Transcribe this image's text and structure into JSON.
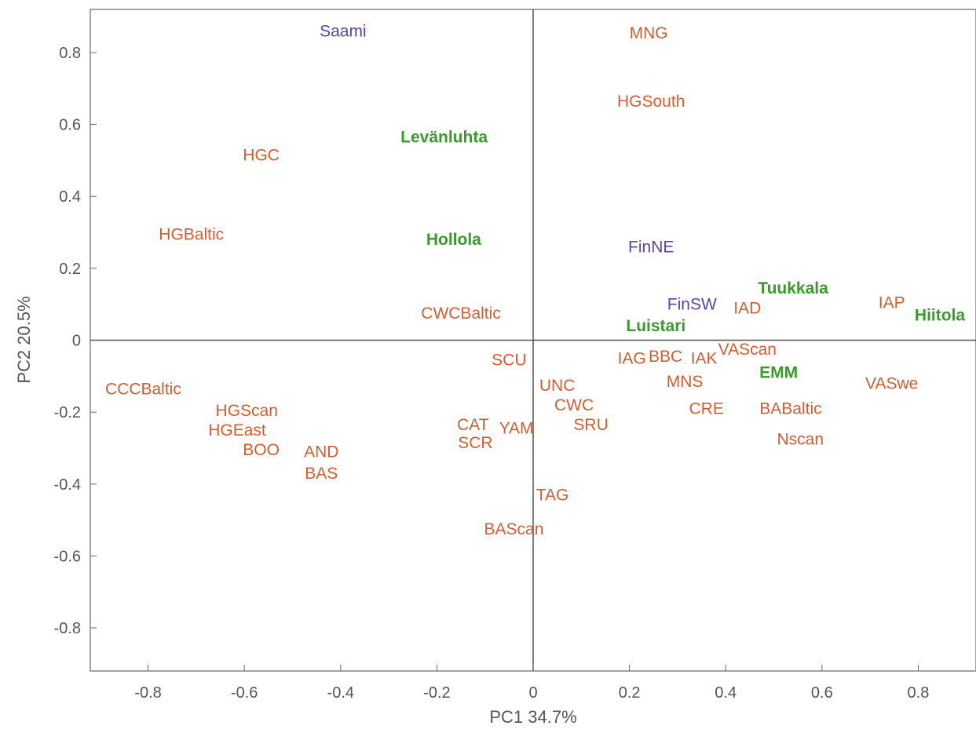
{
  "chart_data": {
    "type": "scatter",
    "xlabel": "PC1 34.7%",
    "ylabel": "PC2 20.5%",
    "xlim": [
      -0.92,
      0.92
    ],
    "ylim": [
      -0.92,
      0.92
    ],
    "x_ticks": [
      -0.8,
      -0.6,
      -0.4,
      -0.2,
      0,
      0.2,
      0.4,
      0.6,
      0.8
    ],
    "y_ticks": [
      0.8,
      0.6,
      0.4,
      0.2,
      0,
      -0.2,
      -0.4,
      -0.6,
      -0.8
    ],
    "x_tick_labels": [
      "-0.8",
      "-0.6",
      "-0.4",
      "-0.2",
      "0",
      "0.2",
      "0.4",
      "0.6",
      "0.8"
    ],
    "y_tick_labels": [
      "0.8",
      "0.6",
      "0.4",
      "0.2",
      "0",
      "-0.2",
      "-0.4",
      "-0.6",
      "-0.8"
    ],
    "zero_lines": true,
    "grid": false,
    "colors": {
      "orange": "#cf5f32",
      "purple": "#5b44a8",
      "green": "#3a9a2c",
      "axis": "#555555",
      "frame": "#666666"
    },
    "points": [
      {
        "label": "Saami",
        "x": -0.395,
        "y": 0.86,
        "color": "purple"
      },
      {
        "label": "MNG",
        "x": 0.24,
        "y": 0.855,
        "color": "orange"
      },
      {
        "label": "HGSouth",
        "x": 0.245,
        "y": 0.665,
        "color": "orange"
      },
      {
        "label": "Levänluhta",
        "x": -0.185,
        "y": 0.565,
        "color": "green",
        "bold": true
      },
      {
        "label": "HGC",
        "x": -0.565,
        "y": 0.515,
        "color": "orange"
      },
      {
        "label": "HGBaltic",
        "x": -0.71,
        "y": 0.295,
        "color": "orange"
      },
      {
        "label": "Hollola",
        "x": -0.165,
        "y": 0.28,
        "color": "green",
        "bold": true
      },
      {
        "label": "FinNE",
        "x": 0.245,
        "y": 0.26,
        "color": "purple"
      },
      {
        "label": "Tuukkala",
        "x": 0.54,
        "y": 0.145,
        "color": "green",
        "bold": true
      },
      {
        "label": "FinSW",
        "x": 0.33,
        "y": 0.1,
        "color": "purple"
      },
      {
        "label": "IAD",
        "x": 0.445,
        "y": 0.09,
        "color": "orange"
      },
      {
        "label": "IAP",
        "x": 0.745,
        "y": 0.105,
        "color": "orange"
      },
      {
        "label": "Hiitola",
        "x": 0.845,
        "y": 0.07,
        "color": "green",
        "bold": true
      },
      {
        "label": "CWCBaltic",
        "x": -0.15,
        "y": 0.075,
        "color": "orange"
      },
      {
        "label": "Luistari",
        "x": 0.255,
        "y": 0.04,
        "color": "green",
        "bold": true
      },
      {
        "label": "VAScan",
        "x": 0.445,
        "y": -0.025,
        "color": "orange"
      },
      {
        "label": "IAG",
        "x": 0.205,
        "y": -0.05,
        "color": "orange"
      },
      {
        "label": "BBC",
        "x": 0.275,
        "y": -0.045,
        "color": "orange"
      },
      {
        "label": "IAK",
        "x": 0.355,
        "y": -0.05,
        "color": "orange"
      },
      {
        "label": "SCU",
        "x": -0.05,
        "y": -0.055,
        "color": "orange"
      },
      {
        "label": "EMM",
        "x": 0.51,
        "y": -0.09,
        "color": "green",
        "bold": true
      },
      {
        "label": "MNS",
        "x": 0.315,
        "y": -0.115,
        "color": "orange"
      },
      {
        "label": "VASwe",
        "x": 0.745,
        "y": -0.12,
        "color": "orange"
      },
      {
        "label": "CCCBaltic",
        "x": -0.81,
        "y": -0.135,
        "color": "orange"
      },
      {
        "label": "UNC",
        "x": 0.05,
        "y": -0.125,
        "color": "orange"
      },
      {
        "label": "HGScan",
        "x": -0.595,
        "y": -0.195,
        "color": "orange"
      },
      {
        "label": "CWC",
        "x": 0.085,
        "y": -0.18,
        "color": "orange"
      },
      {
        "label": "CRE",
        "x": 0.36,
        "y": -0.19,
        "color": "orange"
      },
      {
        "label": "BABaltic",
        "x": 0.535,
        "y": -0.19,
        "color": "orange"
      },
      {
        "label": "CAT",
        "x": -0.125,
        "y": -0.235,
        "color": "orange"
      },
      {
        "label": "HGEast",
        "x": -0.615,
        "y": -0.25,
        "color": "orange"
      },
      {
        "label": "SRU",
        "x": 0.12,
        "y": -0.235,
        "color": "orange"
      },
      {
        "label": "YAM",
        "x": -0.035,
        "y": -0.245,
        "color": "orange"
      },
      {
        "label": "SCR",
        "x": -0.12,
        "y": -0.285,
        "color": "orange"
      },
      {
        "label": "Nscan",
        "x": 0.555,
        "y": -0.275,
        "color": "orange"
      },
      {
        "label": "BOO",
        "x": -0.565,
        "y": -0.305,
        "color": "orange"
      },
      {
        "label": "AND",
        "x": -0.44,
        "y": -0.31,
        "color": "orange"
      },
      {
        "label": "BAS",
        "x": -0.44,
        "y": -0.37,
        "color": "orange"
      },
      {
        "label": "TAG",
        "x": 0.04,
        "y": -0.43,
        "color": "orange"
      },
      {
        "label": "BAScan",
        "x": -0.04,
        "y": -0.525,
        "color": "orange"
      }
    ]
  }
}
